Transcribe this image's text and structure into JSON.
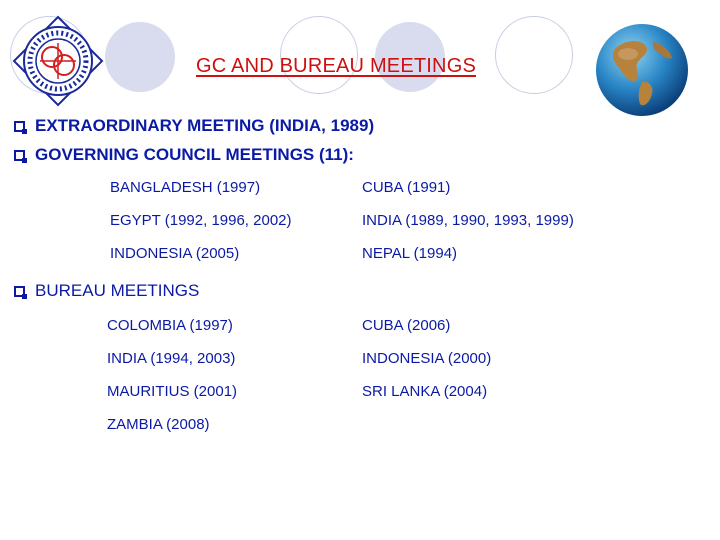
{
  "header": {
    "title": "GC AND BUREAU MEETINGS",
    "logo_icon": "organization-seal-logo",
    "globe_icon": "globe-icon"
  },
  "bullets": {
    "extraordinary": "EXTRAORDINARY MEETING (INDIA, 1989)",
    "governing": "GOVERNING COUNCIL MEETINGS (11):",
    "bureau": "BUREAU MEETINGS"
  },
  "governing_meetings": [
    "BANGLADESH (1997)",
    "CUBA (1991)",
    "EGYPT (1992, 1996, 2002)",
    "INDIA (1989, 1990, 1993, 1999)",
    "INDONESIA (2005)",
    "NEPAL (1994)"
  ],
  "bureau_meetings": [
    "COLOMBIA (1997)",
    "CUBA (2006)",
    "INDIA (1994, 2003)",
    "INDONESIA (2000)",
    "MAURITIUS (2001)",
    "SRI LANKA (2004)",
    "ZAMBIA (2008)"
  ],
  "colors": {
    "title": "#cc1111",
    "text": "#0b1aa5",
    "decor": "#d9dcef"
  }
}
